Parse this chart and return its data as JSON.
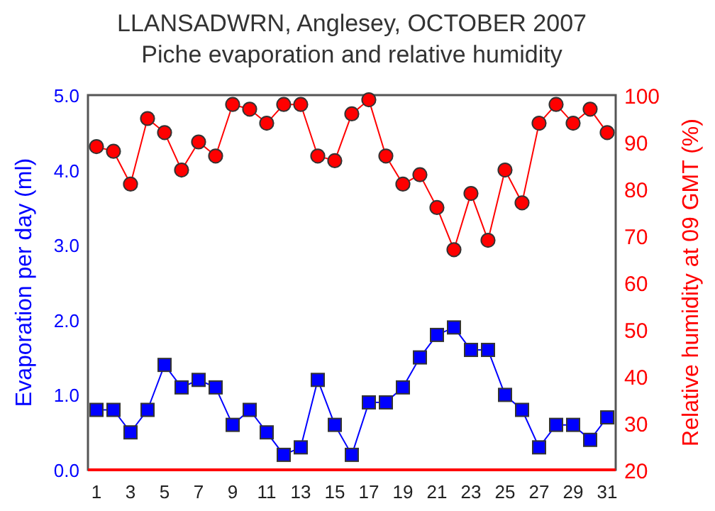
{
  "chart_data": {
    "type": "line",
    "title": "LLANSADWRN, Anglesey, OCTOBER 2007",
    "subtitle": "Piche evaporation and relative humidity",
    "ylabel": "Evaporation per day (ml)",
    "y2label": "Relative humidity at 09 GMT (%)",
    "x": [
      1,
      2,
      3,
      4,
      5,
      6,
      7,
      8,
      9,
      10,
      11,
      12,
      13,
      14,
      15,
      16,
      17,
      18,
      19,
      20,
      21,
      22,
      23,
      24,
      25,
      26,
      27,
      28,
      29,
      30,
      31
    ],
    "xlim": [
      0.5,
      31.5
    ],
    "xticks": [
      1,
      3,
      5,
      7,
      9,
      11,
      13,
      15,
      17,
      19,
      21,
      23,
      25,
      27,
      29,
      31
    ],
    "ylim": [
      0,
      5
    ],
    "yticks": [
      {
        "value": 0,
        "label": "0.0"
      },
      {
        "value": 1,
        "label": "1.0"
      },
      {
        "value": 2,
        "label": "2.0"
      },
      {
        "value": 3,
        "label": "3.0"
      },
      {
        "value": 4,
        "label": "4.0"
      },
      {
        "value": 5,
        "label": "5.0"
      }
    ],
    "y2lim": [
      20,
      100
    ],
    "y2ticks": [
      20,
      30,
      40,
      50,
      60,
      70,
      80,
      90,
      100
    ],
    "series": [
      {
        "color": "#0000ff",
        "marker": "square",
        "values": [
          0.8,
          0.8,
          0.5,
          0.8,
          1.4,
          1.1,
          1.2,
          1.1,
          0.6,
          0.8,
          0.5,
          0.2,
          0.3,
          1.2,
          0.6,
          0.2,
          0.9,
          0.9,
          1.1,
          1.5,
          1.8,
          1.9,
          1.6,
          1.6,
          1.0,
          0.8,
          0.3,
          0.6,
          0.6,
          0.4,
          0.7
        ]
      },
      {
        "color": "#ff0000",
        "marker": "circle",
        "axis": "y2",
        "values": [
          89,
          88,
          81,
          95,
          92,
          84,
          90,
          87,
          98,
          97,
          94,
          98,
          98,
          87,
          86,
          96,
          99,
          87,
          81,
          83,
          76,
          67,
          79,
          69,
          84,
          77,
          94,
          98,
          94,
          97,
          92
        ]
      }
    ]
  }
}
